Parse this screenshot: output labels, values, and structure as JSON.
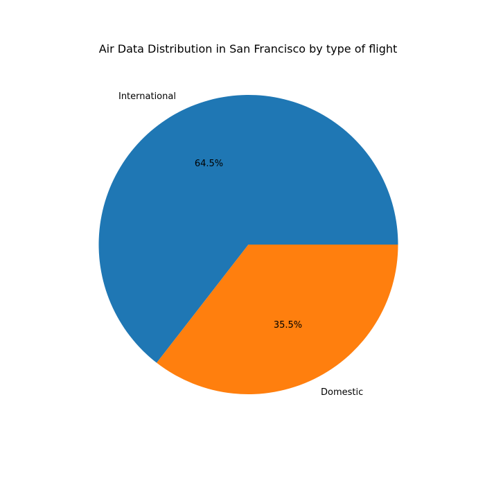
{
  "chart_data": {
    "type": "pie",
    "title": "Air Data Distribution in San Francisco by type of flight",
    "categories": [
      "International",
      "Domestic"
    ],
    "values": [
      64.5,
      35.5
    ],
    "value_labels": [
      "64.5%",
      "35.5%"
    ],
    "colors": [
      "#1f77b4",
      "#ff7f0e"
    ],
    "start_angle_deg": 0,
    "direction": "counterclockwise",
    "legend": "none"
  }
}
